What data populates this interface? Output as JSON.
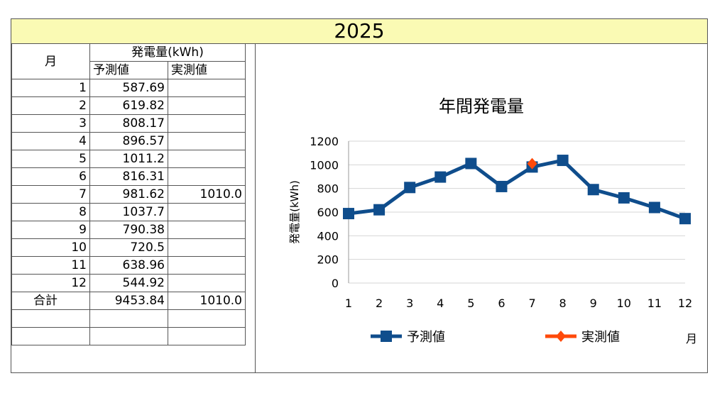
{
  "header": {
    "year": "2025"
  },
  "table": {
    "month_header": "月",
    "generation_header": "発電量(kWh)",
    "predicted_header": "予測値",
    "actual_header": "実測値",
    "rows": [
      {
        "month": "1",
        "predicted": "587.69",
        "actual": ""
      },
      {
        "month": "2",
        "predicted": "619.82",
        "actual": ""
      },
      {
        "month": "3",
        "predicted": "808.17",
        "actual": ""
      },
      {
        "month": "4",
        "predicted": "896.57",
        "actual": ""
      },
      {
        "month": "5",
        "predicted": "1011.2",
        "actual": ""
      },
      {
        "month": "6",
        "predicted": "816.31",
        "actual": ""
      },
      {
        "month": "7",
        "predicted": "981.62",
        "actual": "1010.0"
      },
      {
        "month": "8",
        "predicted": "1037.7",
        "actual": ""
      },
      {
        "month": "9",
        "predicted": "790.38",
        "actual": ""
      },
      {
        "month": "10",
        "predicted": "720.5",
        "actual": ""
      },
      {
        "month": "11",
        "predicted": "638.96",
        "actual": ""
      },
      {
        "month": "12",
        "predicted": "544.92",
        "actual": ""
      }
    ],
    "total_label": "合計",
    "total_predicted": "9453.84",
    "total_actual": "1010.0"
  },
  "chart_data": {
    "type": "line",
    "title": "年間発電量",
    "xlabel": "月",
    "ylabel": "発電量(kWh)",
    "ylim": [
      0,
      1200
    ],
    "yticks": [
      0,
      200,
      400,
      600,
      800,
      1000,
      1200
    ],
    "categories": [
      "1",
      "2",
      "3",
      "4",
      "5",
      "6",
      "7",
      "8",
      "9",
      "10",
      "11",
      "12"
    ],
    "grid": true,
    "legend": "bottom",
    "series": [
      {
        "name": "予測値",
        "color": "#0f4d8c",
        "marker": "square",
        "values": [
          587.69,
          619.82,
          808.17,
          896.57,
          1011.2,
          816.31,
          981.62,
          1037.7,
          790.38,
          720.5,
          638.96,
          544.92
        ]
      },
      {
        "name": "実測値",
        "color": "#ff4a0a",
        "marker": "diamond",
        "values": [
          null,
          null,
          null,
          null,
          null,
          null,
          1010.0,
          null,
          null,
          null,
          null,
          null
        ]
      }
    ]
  }
}
